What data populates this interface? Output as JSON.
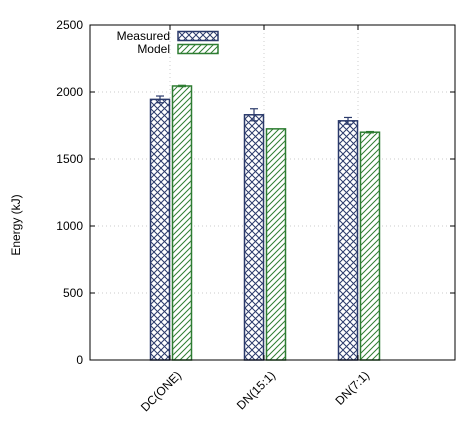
{
  "chart_data": {
    "type": "bar",
    "title": "",
    "xlabel": "",
    "ylabel": "Energy (kJ)",
    "ylim": [
      0,
      2500
    ],
    "yticks": [
      0,
      500,
      1000,
      1500,
      2000,
      2500
    ],
    "categories": [
      "DC(ONE)",
      "DN(15:1)",
      "DN(7:1)"
    ],
    "series": [
      {
        "name": "Measured",
        "values": [
          1945,
          1830,
          1785
        ],
        "errors": [
          25,
          45,
          25
        ],
        "color": "#2b3a6b",
        "pattern": "crosshatch"
      },
      {
        "name": "Model",
        "values": [
          2045,
          1725,
          1700
        ],
        "errors": [
          5,
          0,
          5
        ],
        "color": "#2e7d32",
        "pattern": "diagonal-hatch"
      }
    ],
    "grid": true,
    "legend_position": "top-left"
  }
}
